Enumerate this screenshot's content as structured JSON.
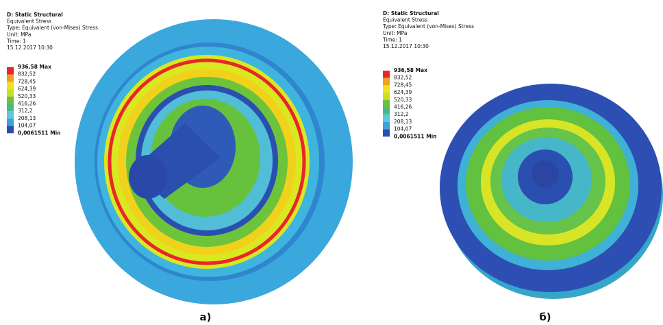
{
  "panels": [
    {
      "lines": [
        "D: Static Structural",
        "Equivalent Stress",
        "Type: Equivalent (von-Mises) Stress",
        "Unit: MPa",
        "Time: 1",
        "15.12.2017 10:30"
      ],
      "legend": [
        "936,58 Max",
        "832,52",
        "728,45",
        "624,39",
        "520,33",
        "416,26",
        "312,2",
        "208,13",
        "104,07",
        "0,0061511 Min"
      ],
      "caption": "а)"
    },
    {
      "lines": [
        "D: Static Structural",
        "Equivalent Stress",
        "Type: Equivalent (von-Mises) Stress",
        "Unit: MPa",
        "Time: 1",
        "15.12.2017 10:30"
      ],
      "legend": [
        "936,58 Max",
        "832,52",
        "728,45",
        "624,39",
        "520,33",
        "416,26",
        "312,2",
        "208,13",
        "104,07",
        "0,0061511 Min"
      ],
      "caption": "б)"
    }
  ]
}
